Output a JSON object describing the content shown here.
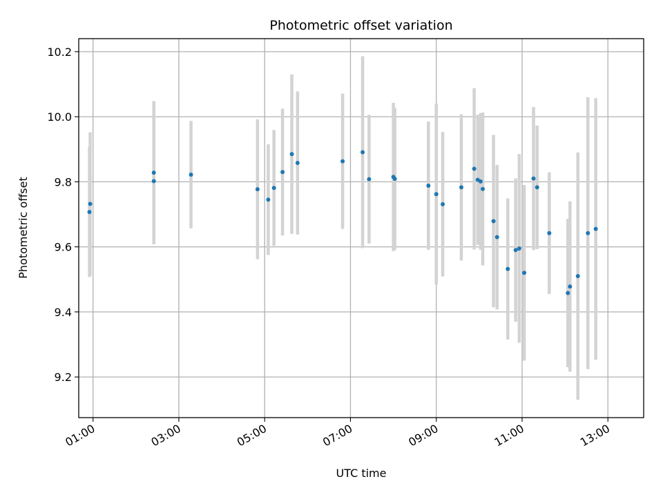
{
  "chart_data": {
    "type": "scatter",
    "title": "Photometric offset variation",
    "xlabel": "UTC time",
    "ylabel": "Photometric offset",
    "x_axis": "time",
    "xlim": [
      "00:40",
      "13:50"
    ],
    "ylim": [
      9.075,
      10.24
    ],
    "x_ticks": [
      "01:00",
      "03:00",
      "05:00",
      "07:00",
      "09:00",
      "11:00",
      "13:00"
    ],
    "y_ticks": [
      9.2,
      9.4,
      9.6,
      9.8,
      10.0,
      10.2
    ],
    "y_tick_labels": [
      "9.2",
      "9.4",
      "9.6",
      "9.8",
      "10.0",
      "10.2"
    ],
    "grid": true,
    "colors": {
      "point": "#1f77b4",
      "error_bar": "#d3d3d3",
      "grid": "#b0b0b0"
    },
    "points": [
      {
        "time": "00:55",
        "y": 9.707,
        "err": 0.2
      },
      {
        "time": "00:56",
        "y": 9.732,
        "err": 0.22
      },
      {
        "time": "02:25",
        "y": 9.828,
        "err": 0.22
      },
      {
        "time": "02:25",
        "y": 9.802,
        "err": 0.19
      },
      {
        "time": "03:17",
        "y": 9.822,
        "err": 0.165
      },
      {
        "time": "04:50",
        "y": 9.777,
        "err": 0.215
      },
      {
        "time": "05:05",
        "y": 9.745,
        "err": 0.17
      },
      {
        "time": "05:13",
        "y": 9.781,
        "err": 0.178
      },
      {
        "time": "05:25",
        "y": 9.83,
        "err": 0.195
      },
      {
        "time": "05:38",
        "y": 9.885,
        "err": 0.245
      },
      {
        "time": "05:46",
        "y": 9.858,
        "err": 0.22
      },
      {
        "time": "06:49",
        "y": 9.863,
        "err": 0.208
      },
      {
        "time": "07:17",
        "y": 9.891,
        "err": 0.295
      },
      {
        "time": "07:26",
        "y": 9.808,
        "err": 0.198
      },
      {
        "time": "08:00",
        "y": 9.815,
        "err": 0.228
      },
      {
        "time": "08:02",
        "y": 9.809,
        "err": 0.218
      },
      {
        "time": "08:49",
        "y": 9.788,
        "err": 0.197
      },
      {
        "time": "09:00",
        "y": 9.762,
        "err": 0.278
      },
      {
        "time": "09:09",
        "y": 9.731,
        "err": 0.222
      },
      {
        "time": "09:35",
        "y": 9.783,
        "err": 0.225
      },
      {
        "time": "09:53",
        "y": 9.84,
        "err": 0.248
      },
      {
        "time": "09:58",
        "y": 9.806,
        "err": 0.2
      },
      {
        "time": "10:02",
        "y": 9.801,
        "err": 0.21
      },
      {
        "time": "10:05",
        "y": 9.778,
        "err": 0.235
      },
      {
        "time": "10:20",
        "y": 9.679,
        "err": 0.265
      },
      {
        "time": "10:25",
        "y": 9.63,
        "err": 0.222
      },
      {
        "time": "10:40",
        "y": 9.532,
        "err": 0.217
      },
      {
        "time": "10:51",
        "y": 9.59,
        "err": 0.22
      },
      {
        "time": "10:56",
        "y": 9.595,
        "err": 0.29
      },
      {
        "time": "11:03",
        "y": 9.52,
        "err": 0.27
      },
      {
        "time": "11:16",
        "y": 9.81,
        "err": 0.22
      },
      {
        "time": "11:21",
        "y": 9.783,
        "err": 0.19
      },
      {
        "time": "11:38",
        "y": 9.642,
        "err": 0.187
      },
      {
        "time": "12:04",
        "y": 9.458,
        "err": 0.228
      },
      {
        "time": "12:07",
        "y": 9.478,
        "err": 0.262
      },
      {
        "time": "12:18",
        "y": 9.51,
        "err": 0.38
      },
      {
        "time": "12:32",
        "y": 9.642,
        "err": 0.418
      },
      {
        "time": "12:43",
        "y": 9.655,
        "err": 0.402
      }
    ]
  }
}
